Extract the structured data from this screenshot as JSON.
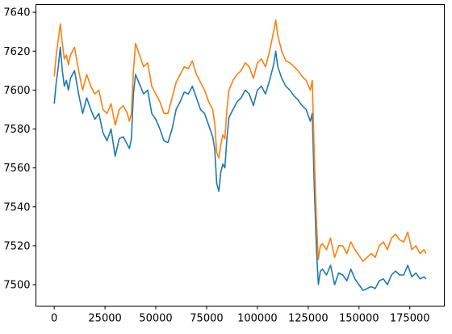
{
  "chart_data": {
    "type": "line",
    "title": "",
    "xlabel": "",
    "ylabel": "",
    "xlim": [
      -9000,
      192000
    ],
    "ylim": [
      7489,
      7644
    ],
    "grid": false,
    "legend": "none",
    "x_ticks": [
      0,
      25000,
      50000,
      75000,
      100000,
      125000,
      150000,
      175000
    ],
    "x_tick_labels": [
      "0",
      "25000",
      "50000",
      "75000",
      "100000",
      "125000",
      "150000",
      "175000"
    ],
    "y_ticks": [
      7500,
      7520,
      7540,
      7560,
      7580,
      7600,
      7620,
      7640
    ],
    "y_tick_labels": [
      "7500",
      "7520",
      "7540",
      "7560",
      "7580",
      "7600",
      "7620",
      "7640"
    ],
    "series": [
      {
        "color": "#1f77b4",
        "x": [
          0,
          1000,
          2000,
          3000,
          4000,
          5000,
          6000,
          7000,
          8000,
          10000,
          12000,
          14000,
          16000,
          18000,
          20000,
          22000,
          24000,
          26000,
          28000,
          30000,
          32000,
          34000,
          36000,
          37000,
          38000,
          39000,
          40000,
          42000,
          44000,
          46000,
          48000,
          50000,
          52000,
          54000,
          56000,
          58000,
          60000,
          62000,
          64000,
          66000,
          68000,
          70000,
          72000,
          74000,
          76000,
          78000,
          79000,
          80000,
          81000,
          82000,
          83000,
          84000,
          85000,
          86000,
          88000,
          90000,
          92000,
          94000,
          96000,
          98000,
          100000,
          102000,
          104000,
          106000,
          108000,
          109000,
          110000,
          112000,
          114000,
          116000,
          118000,
          120000,
          122000,
          124000,
          126000,
          127000,
          128000,
          129000,
          130000,
          131000,
          132000,
          134000,
          136000,
          138000,
          140000,
          142000,
          144000,
          146000,
          148000,
          150000,
          152000,
          154000,
          156000,
          158000,
          160000,
          162000,
          164000,
          166000,
          168000,
          170000,
          172000,
          174000,
          176000,
          178000,
          180000,
          182000,
          183000
        ],
        "values": [
          7593,
          7604,
          7612,
          7622,
          7610,
          7602,
          7605,
          7600,
          7606,
          7610,
          7598,
          7588,
          7596,
          7590,
          7585,
          7588,
          7578,
          7574,
          7580,
          7566,
          7575,
          7576,
          7572,
          7570,
          7575,
          7598,
          7608,
          7603,
          7598,
          7600,
          7588,
          7585,
          7580,
          7574,
          7573,
          7580,
          7590,
          7594,
          7599,
          7598,
          7602,
          7596,
          7590,
          7588,
          7582,
          7576,
          7570,
          7552,
          7548,
          7558,
          7562,
          7560,
          7575,
          7586,
          7590,
          7594,
          7596,
          7600,
          7598,
          7592,
          7600,
          7602,
          7598,
          7605,
          7613,
          7620,
          7612,
          7606,
          7602,
          7600,
          7597,
          7595,
          7592,
          7590,
          7584,
          7588,
          7550,
          7520,
          7500,
          7507,
          7508,
          7505,
          7510,
          7500,
          7506,
          7505,
          7502,
          7508,
          7503,
          7500,
          7497,
          7498,
          7499,
          7498,
          7502,
          7503,
          7500,
          7505,
          7507,
          7505,
          7505,
          7510,
          7504,
          7506,
          7503,
          7504,
          7503
        ]
      },
      {
        "color": "#ff7f0e",
        "x": [
          0,
          1000,
          2000,
          3000,
          4000,
          5000,
          6000,
          7000,
          8000,
          10000,
          12000,
          14000,
          16000,
          18000,
          20000,
          22000,
          24000,
          26000,
          28000,
          30000,
          32000,
          34000,
          36000,
          37000,
          38000,
          39000,
          40000,
          42000,
          44000,
          46000,
          48000,
          50000,
          52000,
          54000,
          56000,
          58000,
          60000,
          62000,
          64000,
          66000,
          68000,
          70000,
          72000,
          74000,
          76000,
          78000,
          79000,
          80000,
          81000,
          82000,
          83000,
          84000,
          85000,
          86000,
          88000,
          90000,
          92000,
          94000,
          96000,
          98000,
          100000,
          102000,
          104000,
          106000,
          108000,
          109000,
          110000,
          112000,
          114000,
          116000,
          118000,
          120000,
          122000,
          124000,
          126000,
          127000,
          128000,
          129000,
          130000,
          131000,
          132000,
          134000,
          136000,
          138000,
          140000,
          142000,
          144000,
          146000,
          148000,
          150000,
          152000,
          154000,
          156000,
          158000,
          160000,
          162000,
          164000,
          166000,
          168000,
          170000,
          172000,
          174000,
          176000,
          178000,
          180000,
          182000,
          183000
        ],
        "values": [
          7607,
          7618,
          7626,
          7634,
          7624,
          7616,
          7618,
          7613,
          7618,
          7622,
          7610,
          7600,
          7608,
          7602,
          7598,
          7600,
          7590,
          7588,
          7593,
          7582,
          7590,
          7592,
          7588,
          7584,
          7588,
          7610,
          7624,
          7618,
          7612,
          7614,
          7602,
          7598,
          7594,
          7588,
          7588,
          7596,
          7604,
          7608,
          7612,
          7611,
          7615,
          7608,
          7604,
          7600,
          7594,
          7590,
          7583,
          7568,
          7565,
          7572,
          7577,
          7575,
          7590,
          7600,
          7605,
          7608,
          7610,
          7614,
          7612,
          7606,
          7614,
          7616,
          7612,
          7620,
          7630,
          7636,
          7628,
          7620,
          7615,
          7614,
          7612,
          7610,
          7607,
          7605,
          7600,
          7605,
          7566,
          7534,
          7513,
          7520,
          7521,
          7518,
          7524,
          7514,
          7520,
          7520,
          7516,
          7522,
          7518,
          7515,
          7512,
          7514,
          7516,
          7514,
          7520,
          7522,
          7518,
          7524,
          7526,
          7523,
          7522,
          7527,
          7518,
          7520,
          7516,
          7518,
          7516
        ]
      }
    ]
  }
}
